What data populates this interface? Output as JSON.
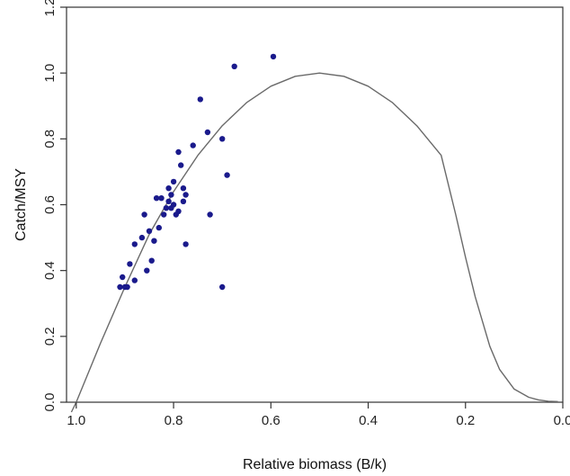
{
  "chart_data": {
    "type": "scatter",
    "title": "",
    "xlabel": "Relative biomass (B/k)",
    "ylabel": "Catch/MSY",
    "xlim": [
      1.02,
      0.0
    ],
    "ylim": [
      0.0,
      1.2
    ],
    "x_reversed": true,
    "grid": false,
    "legend": "none",
    "x_ticks": [
      1.0,
      0.8,
      0.6,
      0.4,
      0.2,
      0.0
    ],
    "x_tick_labels": [
      "1.0",
      "0.8",
      "0.6",
      "0.4",
      "0.2",
      "0.0"
    ],
    "y_ticks": [
      0.0,
      0.2,
      0.4,
      0.6,
      0.8,
      1.0,
      1.2
    ],
    "y_tick_labels": [
      "0.0",
      "0.2",
      "0.4",
      "0.6",
      "0.8",
      "1.0",
      "1.2"
    ],
    "colors": {
      "points": "#1a1a8c",
      "curve": "#6a6a6a",
      "axes": "#333333"
    },
    "series": [
      {
        "kind": "points",
        "x": [
          0.91,
          0.905,
          0.9,
          0.895,
          0.89,
          0.88,
          0.88,
          0.865,
          0.86,
          0.855,
          0.85,
          0.845,
          0.84,
          0.835,
          0.83,
          0.825,
          0.82,
          0.815,
          0.81,
          0.81,
          0.805,
          0.805,
          0.8,
          0.8,
          0.795,
          0.79,
          0.79,
          0.785,
          0.78,
          0.78,
          0.775,
          0.775,
          0.76,
          0.745,
          0.73,
          0.725,
          0.7,
          0.7,
          0.69,
          0.675,
          0.595
        ],
        "y": [
          0.35,
          0.38,
          0.35,
          0.35,
          0.42,
          0.48,
          0.37,
          0.5,
          0.57,
          0.4,
          0.52,
          0.43,
          0.49,
          0.62,
          0.53,
          0.62,
          0.57,
          0.59,
          0.65,
          0.61,
          0.63,
          0.59,
          0.67,
          0.6,
          0.57,
          0.76,
          0.58,
          0.72,
          0.61,
          0.65,
          0.48,
          0.63,
          0.78,
          0.92,
          0.82,
          0.57,
          0.8,
          0.35,
          0.69,
          1.02,
          1.05
        ]
      },
      {
        "kind": "line",
        "x": [
          1.01,
          1.0,
          0.95,
          0.9,
          0.85,
          0.8,
          0.75,
          0.7,
          0.65,
          0.6,
          0.55,
          0.5,
          0.45,
          0.4,
          0.35,
          0.3,
          0.25,
          0.22,
          0.2,
          0.18,
          0.15,
          0.13,
          0.1,
          0.07,
          0.05,
          0.03,
          0.01
        ],
        "y": [
          -0.03,
          0.0,
          0.18,
          0.35,
          0.51,
          0.64,
          0.75,
          0.84,
          0.91,
          0.96,
          0.99,
          1.0,
          0.99,
          0.96,
          0.91,
          0.84,
          0.75,
          0.57,
          0.44,
          0.32,
          0.17,
          0.1,
          0.04,
          0.015,
          0.007,
          0.003,
          0.002
        ]
      }
    ]
  }
}
